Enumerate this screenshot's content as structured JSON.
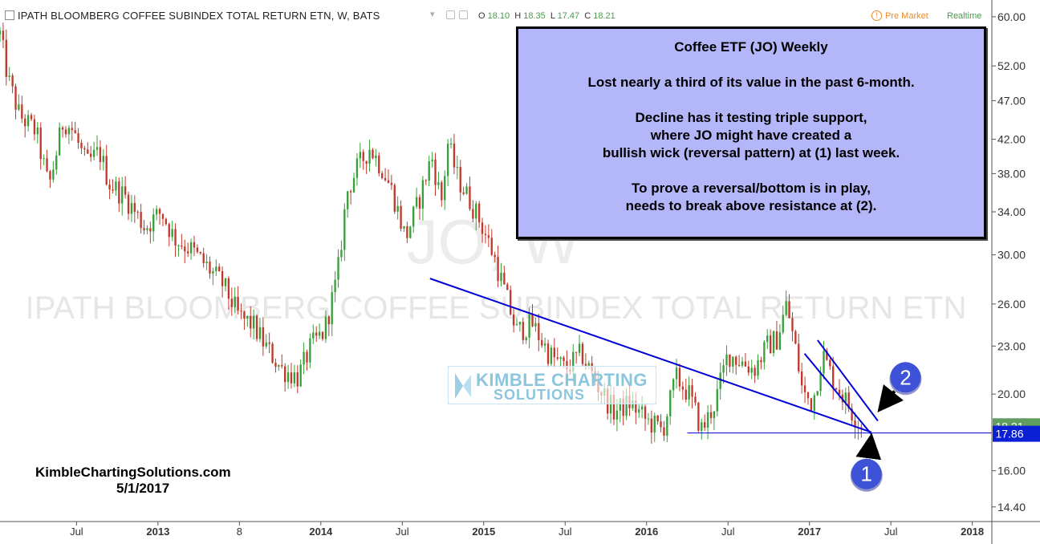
{
  "header": {
    "symbol_title": "IPATH BLOOMBERG COFFEE SUBINDEX TOTAL RETURN ETN, W, BATS",
    "ohlc": {
      "o_label": "O",
      "o": "18.10",
      "h_label": "H",
      "h": "18.35",
      "l_label": "L",
      "l": "17.47",
      "c_label": "C",
      "c": "18.21"
    },
    "premarket": "Pre Market",
    "realtime": "Realtime"
  },
  "watermark": {
    "ticker": "JO, W",
    "name": "IPATH BLOOMBERG COFFEE SUBINDEX TOTAL RETURN ETN"
  },
  "annotation": {
    "title": "Coffee ETF (JO) Weekly",
    "line1": "Lost nearly a third of its value in the past 6-month.",
    "line2": "Decline has it testing triple support,",
    "line3": "where JO might have created a",
    "line4": "bullish wick (reversal pattern) at (1) last week.",
    "line5": "To prove a reversal/bottom is in play,",
    "line6": "needs to break above resistance at (2)."
  },
  "footer": {
    "site": "KimbleChartingSolutions.com",
    "date": "5/1/2017"
  },
  "logo": {
    "line1": "KIMBLE CHARTING",
    "line2": "SOLUTIONS"
  },
  "colors": {
    "up": "#37a03a",
    "down": "#c0392b",
    "trend": "#0000d8",
    "price_badge": "#5f9e5f",
    "level_badge": "#0b1fd4",
    "marker": "#3d52d6",
    "annot_bg": "#b4b6fa"
  },
  "chart_data": {
    "type": "candlestick",
    "price_scale": "log",
    "ylim": [
      13.8,
      63
    ],
    "y_ticks": [
      "60.00",
      "52.00",
      "47.00",
      "42.00",
      "38.00",
      "34.00",
      "30.00",
      "26.00",
      "23.00",
      "20.00",
      "16.00",
      "14.40"
    ],
    "x_ticks": [
      {
        "label": "Jul",
        "t": 2012.5
      },
      {
        "label": "2013",
        "t": 2013.0
      },
      {
        "label": "8",
        "t": 2013.5
      },
      {
        "label": "2014",
        "t": 2014.0
      },
      {
        "label": "Jul",
        "t": 2014.5
      },
      {
        "label": "2015",
        "t": 2015.0
      },
      {
        "label": "Jul",
        "t": 2015.5
      },
      {
        "label": "2016",
        "t": 2016.0
      },
      {
        "label": "Jul",
        "t": 2016.5
      },
      {
        "label": "2017",
        "t": 2017.0
      },
      {
        "label": "Jul",
        "t": 2017.5
      },
      {
        "label": "2018",
        "t": 2018.0
      }
    ],
    "xlim": [
      2012.03,
      2018.12
    ],
    "last_price": "18.21",
    "support_level": "17.86",
    "close_path": [
      [
        2012.03,
        57.0
      ],
      [
        2012.08,
        50.0
      ],
      [
        2012.15,
        45.0
      ],
      [
        2012.25,
        43.0
      ],
      [
        2012.33,
        36.5
      ],
      [
        2012.42,
        44.5
      ],
      [
        2012.48,
        43.0
      ],
      [
        2012.56,
        39.0
      ],
      [
        2012.64,
        40.5
      ],
      [
        2012.7,
        37.0
      ],
      [
        2012.8,
        35.5
      ],
      [
        2012.92,
        32.5
      ],
      [
        2013.02,
        34.0
      ],
      [
        2013.1,
        31.5
      ],
      [
        2013.2,
        30.5
      ],
      [
        2013.3,
        29.0
      ],
      [
        2013.4,
        27.5
      ],
      [
        2013.5,
        25.0
      ],
      [
        2013.58,
        24.5
      ],
      [
        2013.66,
        23.0
      ],
      [
        2013.76,
        21.5
      ],
      [
        2013.86,
        21.0
      ],
      [
        2013.94,
        23.0
      ],
      [
        2014.02,
        24.0
      ],
      [
        2014.1,
        28.0
      ],
      [
        2014.16,
        36.0
      ],
      [
        2014.22,
        38.5
      ],
      [
        2014.3,
        41.0
      ],
      [
        2014.38,
        38.5
      ],
      [
        2014.44,
        36.0
      ],
      [
        2014.52,
        31.5
      ],
      [
        2014.6,
        35.0
      ],
      [
        2014.68,
        40.0
      ],
      [
        2014.74,
        35.0
      ],
      [
        2014.78,
        41.5
      ],
      [
        2014.84,
        37.5
      ],
      [
        2014.92,
        35.0
      ],
      [
        2014.98,
        33.0
      ],
      [
        2015.06,
        30.0
      ],
      [
        2015.14,
        26.5
      ],
      [
        2015.2,
        24.0
      ],
      [
        2015.3,
        24.5
      ],
      [
        2015.4,
        22.5
      ],
      [
        2015.5,
        21.5
      ],
      [
        2015.6,
        22.5
      ],
      [
        2015.7,
        20.5
      ],
      [
        2015.8,
        19.0
      ],
      [
        2015.9,
        19.5
      ],
      [
        2016.0,
        18.5
      ],
      [
        2016.1,
        18.0
      ],
      [
        2016.18,
        21.0
      ],
      [
        2016.26,
        20.0
      ],
      [
        2016.34,
        18.0
      ],
      [
        2016.42,
        19.5
      ],
      [
        2016.5,
        22.5
      ],
      [
        2016.58,
        22.0
      ],
      [
        2016.66,
        21.5
      ],
      [
        2016.74,
        23.0
      ],
      [
        2016.8,
        23.5
      ],
      [
        2016.86,
        26.0
      ],
      [
        2016.92,
        22.5
      ],
      [
        2016.96,
        20.0
      ],
      [
        2017.02,
        19.5
      ],
      [
        2017.08,
        22.5
      ],
      [
        2017.14,
        21.0
      ],
      [
        2017.2,
        20.0
      ],
      [
        2017.26,
        19.0
      ],
      [
        2017.32,
        18.21
      ]
    ],
    "trendlines": [
      {
        "name": "long-resistance",
        "from": [
          2014.67,
          28.0
        ],
        "to": [
          2017.38,
          17.9
        ]
      },
      {
        "name": "short-lower",
        "from": [
          2016.97,
          22.5
        ],
        "to": [
          2017.38,
          17.8
        ]
      },
      {
        "name": "short-upper",
        "from": [
          2017.05,
          23.4
        ],
        "to": [
          2017.42,
          18.5
        ]
      }
    ],
    "support_line": {
      "from": 2016.25,
      "to": 2018.12,
      "value": 17.86
    },
    "markers": [
      {
        "label": "1",
        "t": 2017.35,
        "value": 15.85
      },
      {
        "label": "2",
        "t": 2017.59,
        "value": 21.0
      }
    ]
  }
}
